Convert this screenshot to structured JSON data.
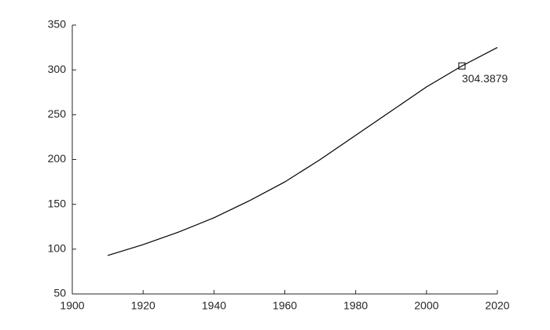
{
  "chart_data": {
    "type": "line",
    "series": [
      {
        "color": "#000000",
        "x": [
          1910,
          1920,
          1930,
          1940,
          1950,
          1960,
          1970,
          1980,
          1990,
          2000,
          2010,
          2020
        ],
        "values": [
          92.9,
          105,
          119,
          135,
          154,
          175,
          200,
          227,
          254,
          281,
          304.4,
          325
        ]
      }
    ],
    "marker": {
      "x": 2010,
      "value": 304.3879
    },
    "xlim": [
      1900,
      2020
    ],
    "xticks": [
      1900,
      1920,
      1940,
      1960,
      1980,
      2000,
      2020
    ],
    "ylim": [
      50,
      350
    ],
    "yticks": [
      50,
      100,
      150,
      200,
      250,
      300,
      350
    ],
    "grid": false
  }
}
